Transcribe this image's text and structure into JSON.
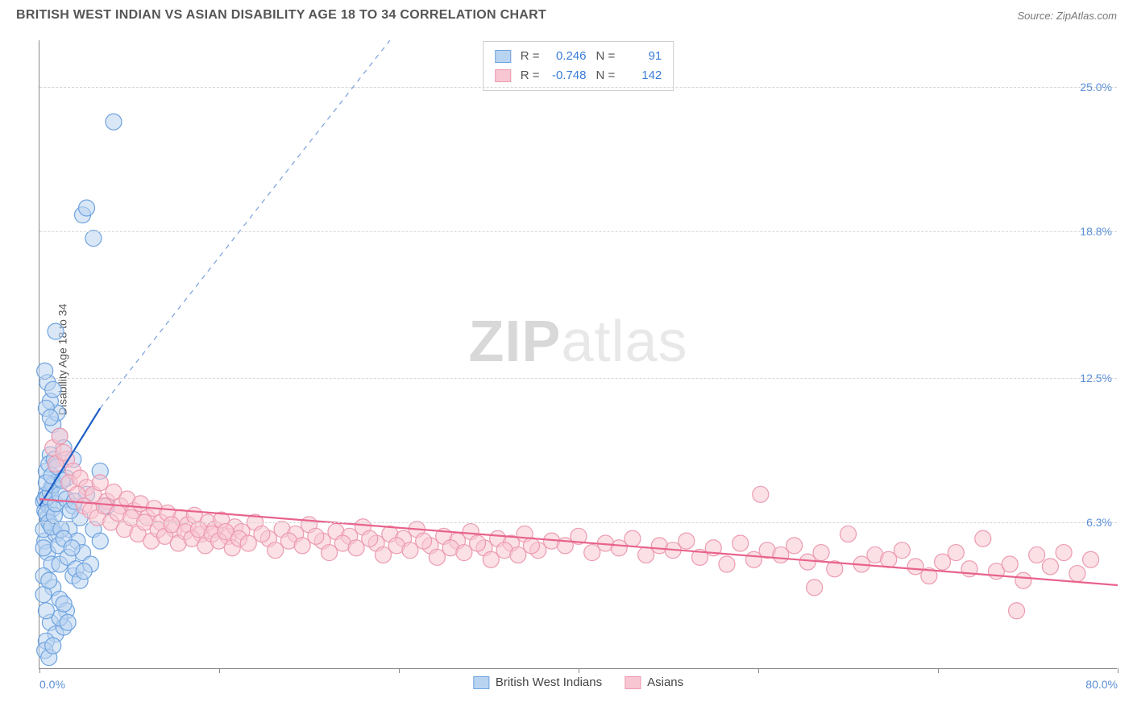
{
  "title": "BRITISH WEST INDIAN VS ASIAN DISABILITY AGE 18 TO 34 CORRELATION CHART",
  "source": "Source: ZipAtlas.com",
  "y_axis_label": "Disability Age 18 to 34",
  "watermark_a": "ZIP",
  "watermark_b": "atlas",
  "chart": {
    "type": "scatter",
    "background_color": "#ffffff",
    "grid_color": "#d8d8d8",
    "axis_color": "#888888",
    "xlim": [
      0,
      80
    ],
    "ylim": [
      0,
      27
    ],
    "x_ticks": [
      0,
      13.33,
      26.67,
      40,
      53.33,
      66.67,
      80
    ],
    "x_tick_labels": {
      "0": "0.0%",
      "80": "80.0%"
    },
    "y_gridlines": [
      6.3,
      12.5,
      18.8,
      25.0
    ],
    "y_tick_labels": [
      "6.3%",
      "12.5%",
      "18.8%",
      "25.0%"
    ],
    "tick_label_color": "#5b8fd6",
    "tick_label_fontsize": 14,
    "series": [
      {
        "name": "British West Indians",
        "fill": "#b9d4f1",
        "stroke": "#6ea3df",
        "marker_radius": 10,
        "fill_opacity": 0.55,
        "R": "0.246",
        "N": "91",
        "regression": {
          "x1": 0,
          "y1": 7.0,
          "x2": 4.5,
          "y2": 11.2,
          "stroke": "#1e5fc4",
          "width": 2.2,
          "dash_extend": {
            "x2": 26,
            "y2": 27
          }
        },
        "points": [
          [
            0.3,
            7.2
          ],
          [
            0.4,
            6.8
          ],
          [
            0.5,
            7.5
          ],
          [
            0.6,
            6.5
          ],
          [
            0.7,
            7.0
          ],
          [
            0.8,
            6.2
          ],
          [
            0.9,
            7.8
          ],
          [
            1.0,
            6.9
          ],
          [
            0.5,
            8.5
          ],
          [
            0.8,
            9.2
          ],
          [
            1.1,
            8.0
          ],
          [
            0.4,
            5.5
          ],
          [
            0.6,
            5.0
          ],
          [
            0.9,
            4.5
          ],
          [
            1.2,
            5.8
          ],
          [
            0.3,
            4.0
          ],
          [
            1.0,
            10.5
          ],
          [
            1.3,
            11.0
          ],
          [
            0.8,
            11.5
          ],
          [
            1.5,
            10.0
          ],
          [
            0.5,
            11.2
          ],
          [
            1.8,
            9.5
          ],
          [
            2.0,
            8.2
          ],
          [
            2.5,
            7.0
          ],
          [
            2.2,
            6.0
          ],
          [
            2.8,
            5.5
          ],
          [
            3.0,
            6.5
          ],
          [
            3.2,
            5.0
          ],
          [
            2.5,
            4.0
          ],
          [
            1.5,
            4.5
          ],
          [
            1.0,
            3.5
          ],
          [
            1.5,
            3.0
          ],
          [
            2.0,
            2.5
          ],
          [
            0.8,
            2.0
          ],
          [
            1.2,
            1.5
          ],
          [
            0.5,
            1.2
          ],
          [
            1.8,
            1.8
          ],
          [
            0.6,
            12.3
          ],
          [
            1.0,
            12.0
          ],
          [
            0.4,
            12.8
          ],
          [
            4.0,
            18.5
          ],
          [
            3.2,
            19.5
          ],
          [
            3.5,
            19.8
          ],
          [
            5.5,
            23.5
          ],
          [
            1.2,
            14.5
          ],
          [
            0.8,
            10.8
          ],
          [
            2.5,
            9.0
          ],
          [
            3.5,
            7.5
          ],
          [
            4.0,
            6.0
          ],
          [
            4.5,
            5.5
          ],
          [
            3.8,
            4.5
          ],
          [
            0.4,
            0.8
          ],
          [
            0.7,
            0.5
          ],
          [
            1.0,
            1.0
          ],
          [
            0.3,
            6.0
          ],
          [
            0.4,
            7.3
          ],
          [
            0.5,
            6.7
          ],
          [
            0.6,
            7.4
          ],
          [
            0.7,
            6.3
          ],
          [
            0.8,
            7.6
          ],
          [
            0.9,
            6.1
          ],
          [
            1.0,
            7.9
          ],
          [
            1.1,
            6.6
          ],
          [
            1.2,
            7.1
          ],
          [
            0.3,
            5.2
          ],
          [
            0.5,
            8.0
          ],
          [
            0.7,
            8.8
          ],
          [
            0.9,
            8.3
          ],
          [
            1.1,
            9.0
          ],
          [
            1.3,
            8.7
          ],
          [
            1.5,
            7.5
          ],
          [
            1.7,
            8.1
          ],
          [
            2.0,
            7.3
          ],
          [
            2.3,
            6.8
          ],
          [
            2.6,
            7.2
          ],
          [
            1.4,
            5.3
          ],
          [
            1.6,
            6.0
          ],
          [
            1.8,
            5.6
          ],
          [
            2.1,
            4.8
          ],
          [
            2.4,
            5.2
          ],
          [
            2.7,
            4.3
          ],
          [
            3.0,
            3.8
          ],
          [
            3.3,
            4.2
          ],
          [
            1.5,
            2.2
          ],
          [
            1.8,
            2.8
          ],
          [
            2.1,
            2.0
          ],
          [
            0.3,
            3.2
          ],
          [
            0.5,
            2.5
          ],
          [
            0.7,
            3.8
          ],
          [
            4.5,
            8.5
          ],
          [
            5.0,
            7.0
          ]
        ]
      },
      {
        "name": "Asians",
        "fill": "#f7c6d2",
        "stroke": "#ec9ab0",
        "marker_radius": 10,
        "fill_opacity": 0.55,
        "R": "-0.748",
        "N": "142",
        "regression": {
          "x1": 0,
          "y1": 7.3,
          "x2": 80,
          "y2": 3.6,
          "stroke": "#e8638c",
          "width": 2.2
        },
        "points": [
          [
            1.0,
            9.5
          ],
          [
            1.5,
            10.0
          ],
          [
            2.0,
            9.0
          ],
          [
            2.5,
            8.5
          ],
          [
            1.2,
            8.8
          ],
          [
            1.8,
            9.3
          ],
          [
            2.2,
            8.0
          ],
          [
            3.0,
            8.2
          ],
          [
            3.5,
            7.8
          ],
          [
            4.0,
            7.5
          ],
          [
            4.5,
            8.0
          ],
          [
            5.0,
            7.2
          ],
          [
            5.5,
            7.6
          ],
          [
            6.0,
            7.0
          ],
          [
            6.5,
            7.3
          ],
          [
            7.0,
            6.8
          ],
          [
            7.5,
            7.1
          ],
          [
            8.0,
            6.5
          ],
          [
            8.5,
            6.9
          ],
          [
            9.0,
            6.3
          ],
          [
            9.5,
            6.7
          ],
          [
            10.0,
            6.0
          ],
          [
            10.5,
            6.5
          ],
          [
            11.0,
            6.2
          ],
          [
            11.5,
            6.6
          ],
          [
            12.0,
            5.8
          ],
          [
            12.5,
            6.3
          ],
          [
            13.0,
            6.0
          ],
          [
            13.5,
            6.4
          ],
          [
            14.0,
            5.7
          ],
          [
            14.5,
            6.1
          ],
          [
            15.0,
            5.9
          ],
          [
            16.0,
            6.3
          ],
          [
            17.0,
            5.6
          ],
          [
            18.0,
            6.0
          ],
          [
            19.0,
            5.8
          ],
          [
            20.0,
            6.2
          ],
          [
            21.0,
            5.5
          ],
          [
            22.0,
            5.9
          ],
          [
            23.0,
            5.7
          ],
          [
            24.0,
            6.1
          ],
          [
            25.0,
            5.4
          ],
          [
            26.0,
            5.8
          ],
          [
            27.0,
            5.6
          ],
          [
            28.0,
            6.0
          ],
          [
            29.0,
            5.3
          ],
          [
            30.0,
            5.7
          ],
          [
            31.0,
            5.5
          ],
          [
            32.0,
            5.9
          ],
          [
            33.0,
            5.2
          ],
          [
            34.0,
            5.6
          ],
          [
            35.0,
            5.4
          ],
          [
            36.0,
            5.8
          ],
          [
            37.0,
            5.1
          ],
          [
            38.0,
            5.5
          ],
          [
            39.0,
            5.3
          ],
          [
            40.0,
            5.7
          ],
          [
            41.0,
            5.0
          ],
          [
            42.0,
            5.4
          ],
          [
            43.0,
            5.2
          ],
          [
            44.0,
            5.6
          ],
          [
            45.0,
            4.9
          ],
          [
            46.0,
            5.3
          ],
          [
            47.0,
            5.1
          ],
          [
            48.0,
            5.5
          ],
          [
            49.0,
            4.8
          ],
          [
            50.0,
            5.2
          ],
          [
            51.0,
            4.5
          ],
          [
            52.0,
            5.4
          ],
          [
            53.0,
            4.7
          ],
          [
            54.0,
            5.1
          ],
          [
            55.0,
            4.9
          ],
          [
            56.0,
            5.3
          ],
          [
            57.0,
            4.6
          ],
          [
            58.0,
            5.0
          ],
          [
            59.0,
            4.3
          ],
          [
            60.0,
            5.8
          ],
          [
            61.0,
            4.5
          ],
          [
            62.0,
            4.9
          ],
          [
            63.0,
            4.7
          ],
          [
            64.0,
            5.1
          ],
          [
            65.0,
            4.4
          ],
          [
            66.0,
            4.0
          ],
          [
            67.0,
            4.6
          ],
          [
            68.0,
            5.0
          ],
          [
            69.0,
            4.3
          ],
          [
            70.0,
            5.6
          ],
          [
            71.0,
            4.2
          ],
          [
            72.0,
            4.5
          ],
          [
            73.0,
            3.8
          ],
          [
            74.0,
            4.9
          ],
          [
            75.0,
            4.4
          ],
          [
            76.0,
            5.0
          ],
          [
            77.0,
            4.1
          ],
          [
            78.0,
            4.7
          ],
          [
            53.5,
            7.5
          ],
          [
            57.5,
            3.5
          ],
          [
            72.5,
            2.5
          ],
          [
            2.8,
            7.5
          ],
          [
            3.3,
            7.0
          ],
          [
            3.8,
            6.8
          ],
          [
            4.3,
            6.5
          ],
          [
            4.8,
            7.0
          ],
          [
            5.3,
            6.3
          ],
          [
            5.8,
            6.7
          ],
          [
            6.3,
            6.0
          ],
          [
            6.8,
            6.5
          ],
          [
            7.3,
            5.8
          ],
          [
            7.8,
            6.3
          ],
          [
            8.3,
            5.5
          ],
          [
            8.8,
            6.0
          ],
          [
            9.3,
            5.7
          ],
          [
            9.8,
            6.2
          ],
          [
            10.3,
            5.4
          ],
          [
            10.8,
            5.9
          ],
          [
            11.3,
            5.6
          ],
          [
            11.8,
            6.0
          ],
          [
            12.3,
            5.3
          ],
          [
            12.8,
            5.8
          ],
          [
            13.3,
            5.5
          ],
          [
            13.8,
            5.9
          ],
          [
            14.3,
            5.2
          ],
          [
            14.8,
            5.6
          ],
          [
            15.5,
            5.4
          ],
          [
            16.5,
            5.8
          ],
          [
            17.5,
            5.1
          ],
          [
            18.5,
            5.5
          ],
          [
            19.5,
            5.3
          ],
          [
            20.5,
            5.7
          ],
          [
            21.5,
            5.0
          ],
          [
            22.5,
            5.4
          ],
          [
            23.5,
            5.2
          ],
          [
            24.5,
            5.6
          ],
          [
            25.5,
            4.9
          ],
          [
            26.5,
            5.3
          ],
          [
            27.5,
            5.1
          ],
          [
            28.5,
            5.5
          ],
          [
            29.5,
            4.8
          ],
          [
            30.5,
            5.2
          ],
          [
            31.5,
            5.0
          ],
          [
            32.5,
            5.4
          ],
          [
            33.5,
            4.7
          ],
          [
            34.5,
            5.1
          ],
          [
            35.5,
            4.9
          ],
          [
            36.5,
            5.3
          ]
        ]
      }
    ]
  },
  "legend_top": {
    "r_label": "R =",
    "n_label": "N ="
  },
  "legend_bottom": {
    "items": [
      "British West Indians",
      "Asians"
    ]
  }
}
